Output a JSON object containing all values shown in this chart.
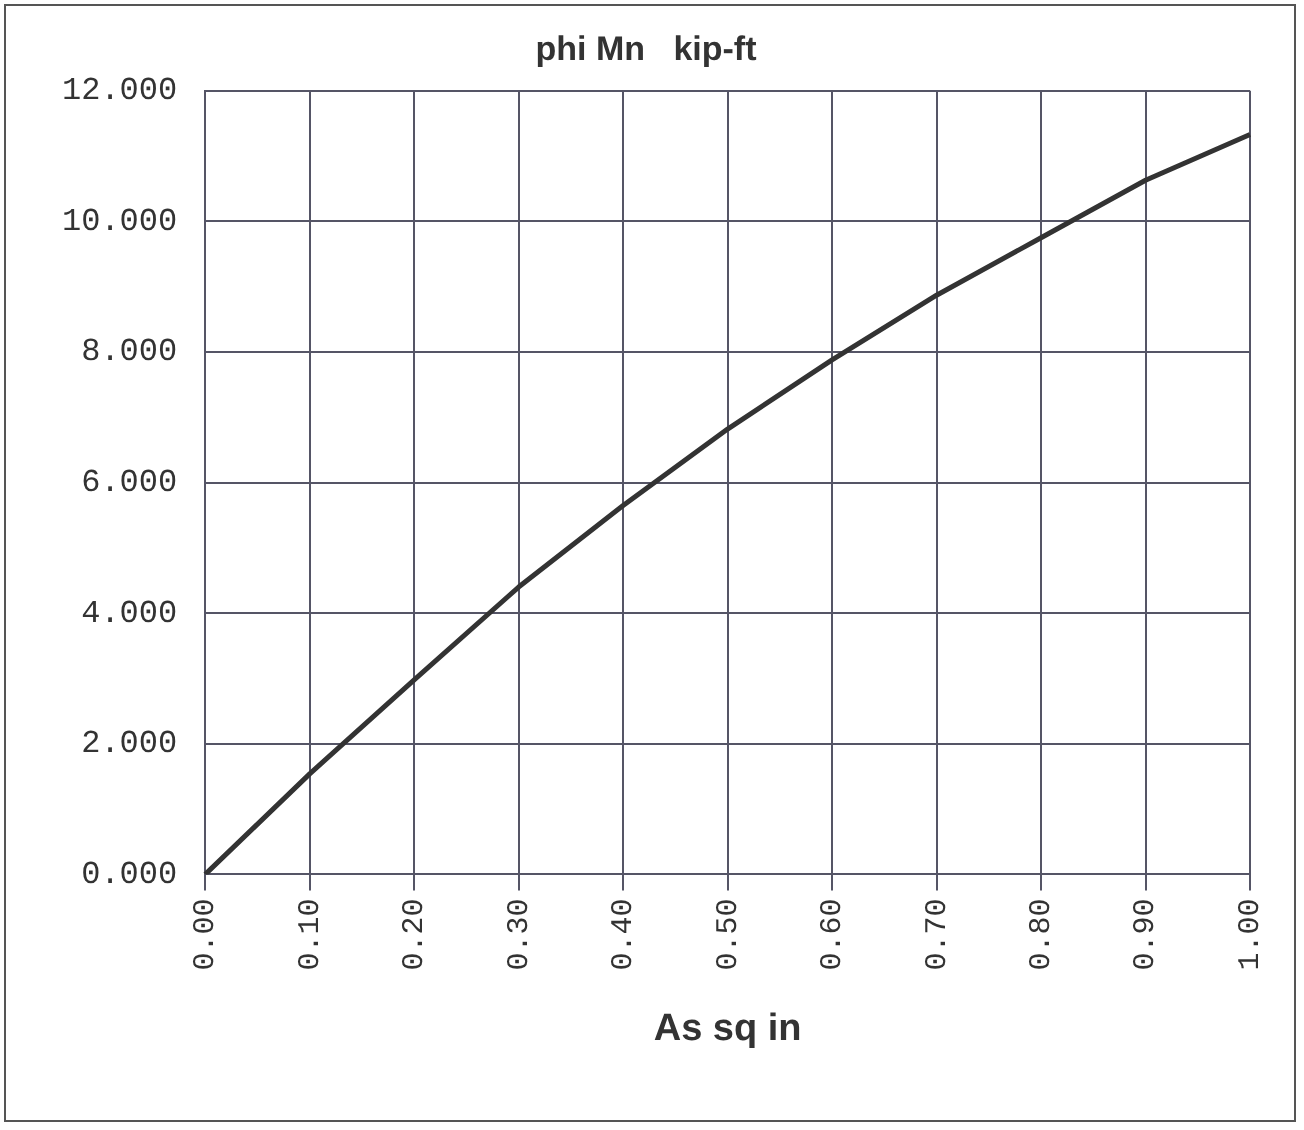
{
  "chart_data": {
    "type": "line",
    "title": "phi Mn   kip-ft",
    "xlabel": "As sq in",
    "categories": [
      "0.00",
      "0.10",
      "0.20",
      "0.30",
      "0.40",
      "0.50",
      "0.60",
      "0.70",
      "0.80",
      "0.90",
      "1.00"
    ],
    "series": [
      {
        "color": "#333333",
        "values": [
          0,
          1.54,
          2.98,
          4.4,
          5.65,
          6.82,
          7.88,
          8.87,
          9.75,
          10.63,
          11.33
        ]
      }
    ],
    "ylim": [
      0,
      12
    ],
    "yticks": [
      {
        "value": 0,
        "label": "0.000"
      },
      {
        "value": 2,
        "label": "2.000"
      },
      {
        "value": 4,
        "label": "4.000"
      },
      {
        "value": 6,
        "label": "6.000"
      },
      {
        "value": 8,
        "label": "8.000"
      },
      {
        "value": 10,
        "label": "10.000"
      },
      {
        "value": 12,
        "label": "12.000"
      }
    ],
    "grid": true,
    "legend": false,
    "marker": "none",
    "line_style": "solid"
  }
}
